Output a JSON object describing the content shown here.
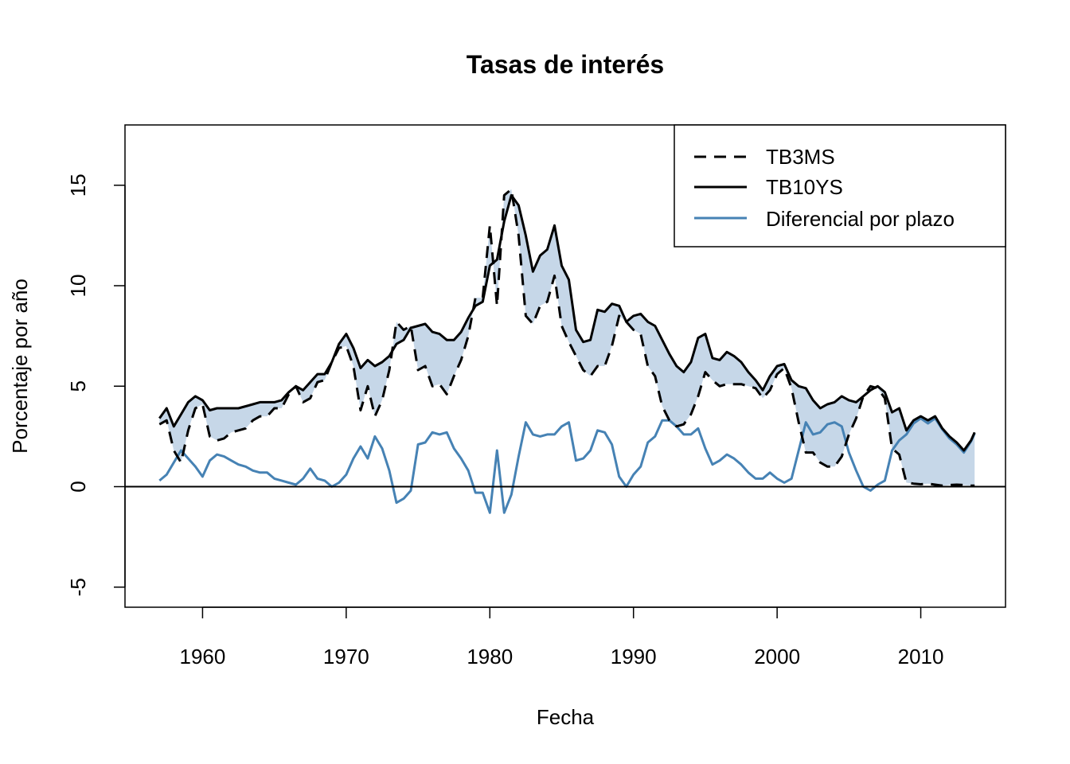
{
  "chart_data": {
    "type": "line",
    "title": "Tasas de interés",
    "xlabel": "Fecha",
    "ylabel": "Porcentaje por año",
    "xlim": [
      1954.6,
      2015.9
    ],
    "ylim": [
      -6.0,
      18.0
    ],
    "x_ticks": [
      "1960",
      "1970",
      "1980",
      "1990",
      "2000",
      "2010"
    ],
    "y_ticks": [
      "-5",
      "0",
      "5",
      "10",
      "15"
    ],
    "grid": false,
    "zero_line": true,
    "legend_position": "top-right",
    "fill": {
      "between": [
        "TB10YS",
        "TB3MS"
      ],
      "color": "#c6d7e8"
    },
    "x": [
      1957.0,
      1957.5,
      1958.0,
      1958.5,
      1959.0,
      1959.5,
      1960.0,
      1960.5,
      1961.0,
      1961.5,
      1962.0,
      1962.5,
      1963.0,
      1963.5,
      1964.0,
      1964.5,
      1965.0,
      1965.5,
      1966.0,
      1966.5,
      1967.0,
      1967.5,
      1968.0,
      1968.5,
      1969.0,
      1969.5,
      1970.0,
      1970.5,
      1971.0,
      1971.5,
      1972.0,
      1972.5,
      1973.0,
      1973.5,
      1974.0,
      1974.5,
      1975.0,
      1975.5,
      1976.0,
      1976.5,
      1977.0,
      1977.5,
      1978.0,
      1978.5,
      1979.0,
      1979.5,
      1980.0,
      1980.5,
      1981.0,
      1981.5,
      1982.0,
      1982.5,
      1983.0,
      1983.5,
      1984.0,
      1984.5,
      1985.0,
      1985.5,
      1986.0,
      1986.5,
      1987.0,
      1987.5,
      1988.0,
      1988.5,
      1989.0,
      1989.5,
      1990.0,
      1990.5,
      1991.0,
      1991.5,
      1992.0,
      1992.5,
      1993.0,
      1993.5,
      1994.0,
      1994.5,
      1995.0,
      1995.5,
      1996.0,
      1996.5,
      1997.0,
      1997.5,
      1998.0,
      1998.5,
      1999.0,
      1999.5,
      2000.0,
      2000.5,
      2001.0,
      2001.5,
      2002.0,
      2002.5,
      2003.0,
      2003.5,
      2004.0,
      2004.5,
      2005.0,
      2005.5,
      2006.0,
      2006.5,
      2007.0,
      2007.5,
      2008.0,
      2008.5,
      2009.0,
      2009.5,
      2010.0,
      2010.5,
      2011.0,
      2011.5,
      2012.0,
      2012.5,
      2013.0,
      2013.5,
      2013.75
    ],
    "series": [
      {
        "name": "TB3MS",
        "color": "#000000",
        "style": "dashed",
        "values": [
          3.1,
          3.3,
          1.8,
          1.2,
          2.8,
          3.9,
          4.1,
          2.5,
          2.3,
          2.4,
          2.7,
          2.8,
          2.9,
          3.3,
          3.5,
          3.5,
          3.9,
          3.9,
          4.6,
          5.0,
          4.2,
          4.4,
          5.2,
          5.3,
          6.2,
          6.9,
          7.0,
          6.0,
          3.8,
          5.0,
          3.5,
          4.3,
          5.8,
          8.2,
          7.8,
          8.0,
          5.8,
          6.0,
          5.0,
          5.1,
          4.6,
          5.5,
          6.3,
          7.5,
          9.4,
          9.4,
          13.0,
          9.0,
          14.5,
          14.8,
          12.5,
          8.5,
          8.1,
          9.0,
          9.2,
          10.5,
          8.0,
          7.2,
          6.5,
          5.8,
          5.5,
          6.0,
          6.0,
          7.0,
          8.5,
          8.2,
          7.8,
          7.6,
          6.0,
          5.5,
          4.0,
          3.3,
          3.0,
          3.1,
          3.6,
          4.5,
          5.7,
          5.3,
          5.0,
          5.1,
          5.1,
          5.1,
          5.0,
          4.9,
          4.4,
          4.8,
          5.6,
          5.9,
          4.9,
          3.2,
          1.7,
          1.7,
          1.2,
          1.0,
          1.0,
          1.5,
          2.6,
          3.4,
          4.5,
          5.0,
          4.9,
          4.4,
          1.9,
          1.6,
          0.2,
          0.15,
          0.12,
          0.15,
          0.1,
          0.05,
          0.08,
          0.1,
          0.08,
          0.05,
          0.05
        ]
      },
      {
        "name": "TB10YS",
        "color": "#000000",
        "style": "solid",
        "values": [
          3.4,
          3.9,
          3.0,
          3.6,
          4.2,
          4.5,
          4.3,
          3.8,
          3.9,
          3.9,
          3.9,
          3.9,
          4.0,
          4.1,
          4.2,
          4.2,
          4.2,
          4.3,
          4.7,
          5.0,
          4.8,
          5.2,
          5.6,
          5.6,
          6.2,
          7.1,
          7.6,
          6.9,
          5.9,
          6.3,
          6.0,
          6.2,
          6.5,
          7.1,
          7.3,
          7.9,
          8.0,
          8.1,
          7.7,
          7.6,
          7.3,
          7.3,
          7.7,
          8.4,
          9.0,
          9.2,
          11.0,
          11.3,
          13.2,
          14.5,
          14.0,
          12.5,
          10.7,
          11.5,
          11.8,
          13.0,
          11.0,
          10.3,
          7.8,
          7.2,
          7.3,
          8.8,
          8.7,
          9.1,
          9.0,
          8.2,
          8.5,
          8.6,
          8.2,
          8.0,
          7.3,
          6.6,
          6.0,
          5.7,
          6.2,
          7.4,
          7.6,
          6.4,
          6.3,
          6.7,
          6.5,
          6.2,
          5.7,
          5.3,
          4.8,
          5.5,
          6.0,
          6.1,
          5.3,
          5.0,
          4.9,
          4.3,
          3.9,
          4.1,
          4.2,
          4.5,
          4.3,
          4.2,
          4.5,
          4.8,
          5.0,
          4.7,
          3.7,
          3.9,
          2.8,
          3.3,
          3.5,
          3.3,
          3.5,
          2.9,
          2.5,
          2.2,
          1.8,
          2.3,
          2.7
        ]
      },
      {
        "name": "Diferencial por plazo",
        "color": "#4682b4",
        "style": "solid",
        "values": [
          0.3,
          0.6,
          1.2,
          1.8,
          1.4,
          1.0,
          0.5,
          1.3,
          1.6,
          1.5,
          1.3,
          1.1,
          1.0,
          0.8,
          0.7,
          0.7,
          0.4,
          0.3,
          0.2,
          0.1,
          0.4,
          0.9,
          0.4,
          0.3,
          0.0,
          0.2,
          0.6,
          1.4,
          2.0,
          1.4,
          2.5,
          1.9,
          0.8,
          -0.8,
          -0.6,
          -0.2,
          2.1,
          2.2,
          2.7,
          2.6,
          2.7,
          1.9,
          1.4,
          0.8,
          -0.3,
          -0.3,
          -1.3,
          1.8,
          -1.3,
          -0.4,
          1.5,
          3.2,
          2.6,
          2.5,
          2.6,
          2.6,
          3.0,
          3.2,
          1.3,
          1.4,
          1.8,
          2.8,
          2.7,
          2.1,
          0.5,
          0.0,
          0.6,
          1.0,
          2.2,
          2.5,
          3.3,
          3.3,
          3.0,
          2.6,
          2.6,
          2.9,
          1.9,
          1.1,
          1.3,
          1.6,
          1.4,
          1.1,
          0.7,
          0.4,
          0.4,
          0.7,
          0.4,
          0.2,
          0.4,
          1.8,
          3.2,
          2.6,
          2.7,
          3.1,
          3.2,
          3.0,
          1.7,
          0.8,
          0.0,
          -0.2,
          0.1,
          0.3,
          1.8,
          2.3,
          2.6,
          3.15,
          3.4,
          3.15,
          3.4,
          2.85,
          2.4,
          2.1,
          1.7,
          2.25,
          2.65
        ]
      }
    ]
  }
}
